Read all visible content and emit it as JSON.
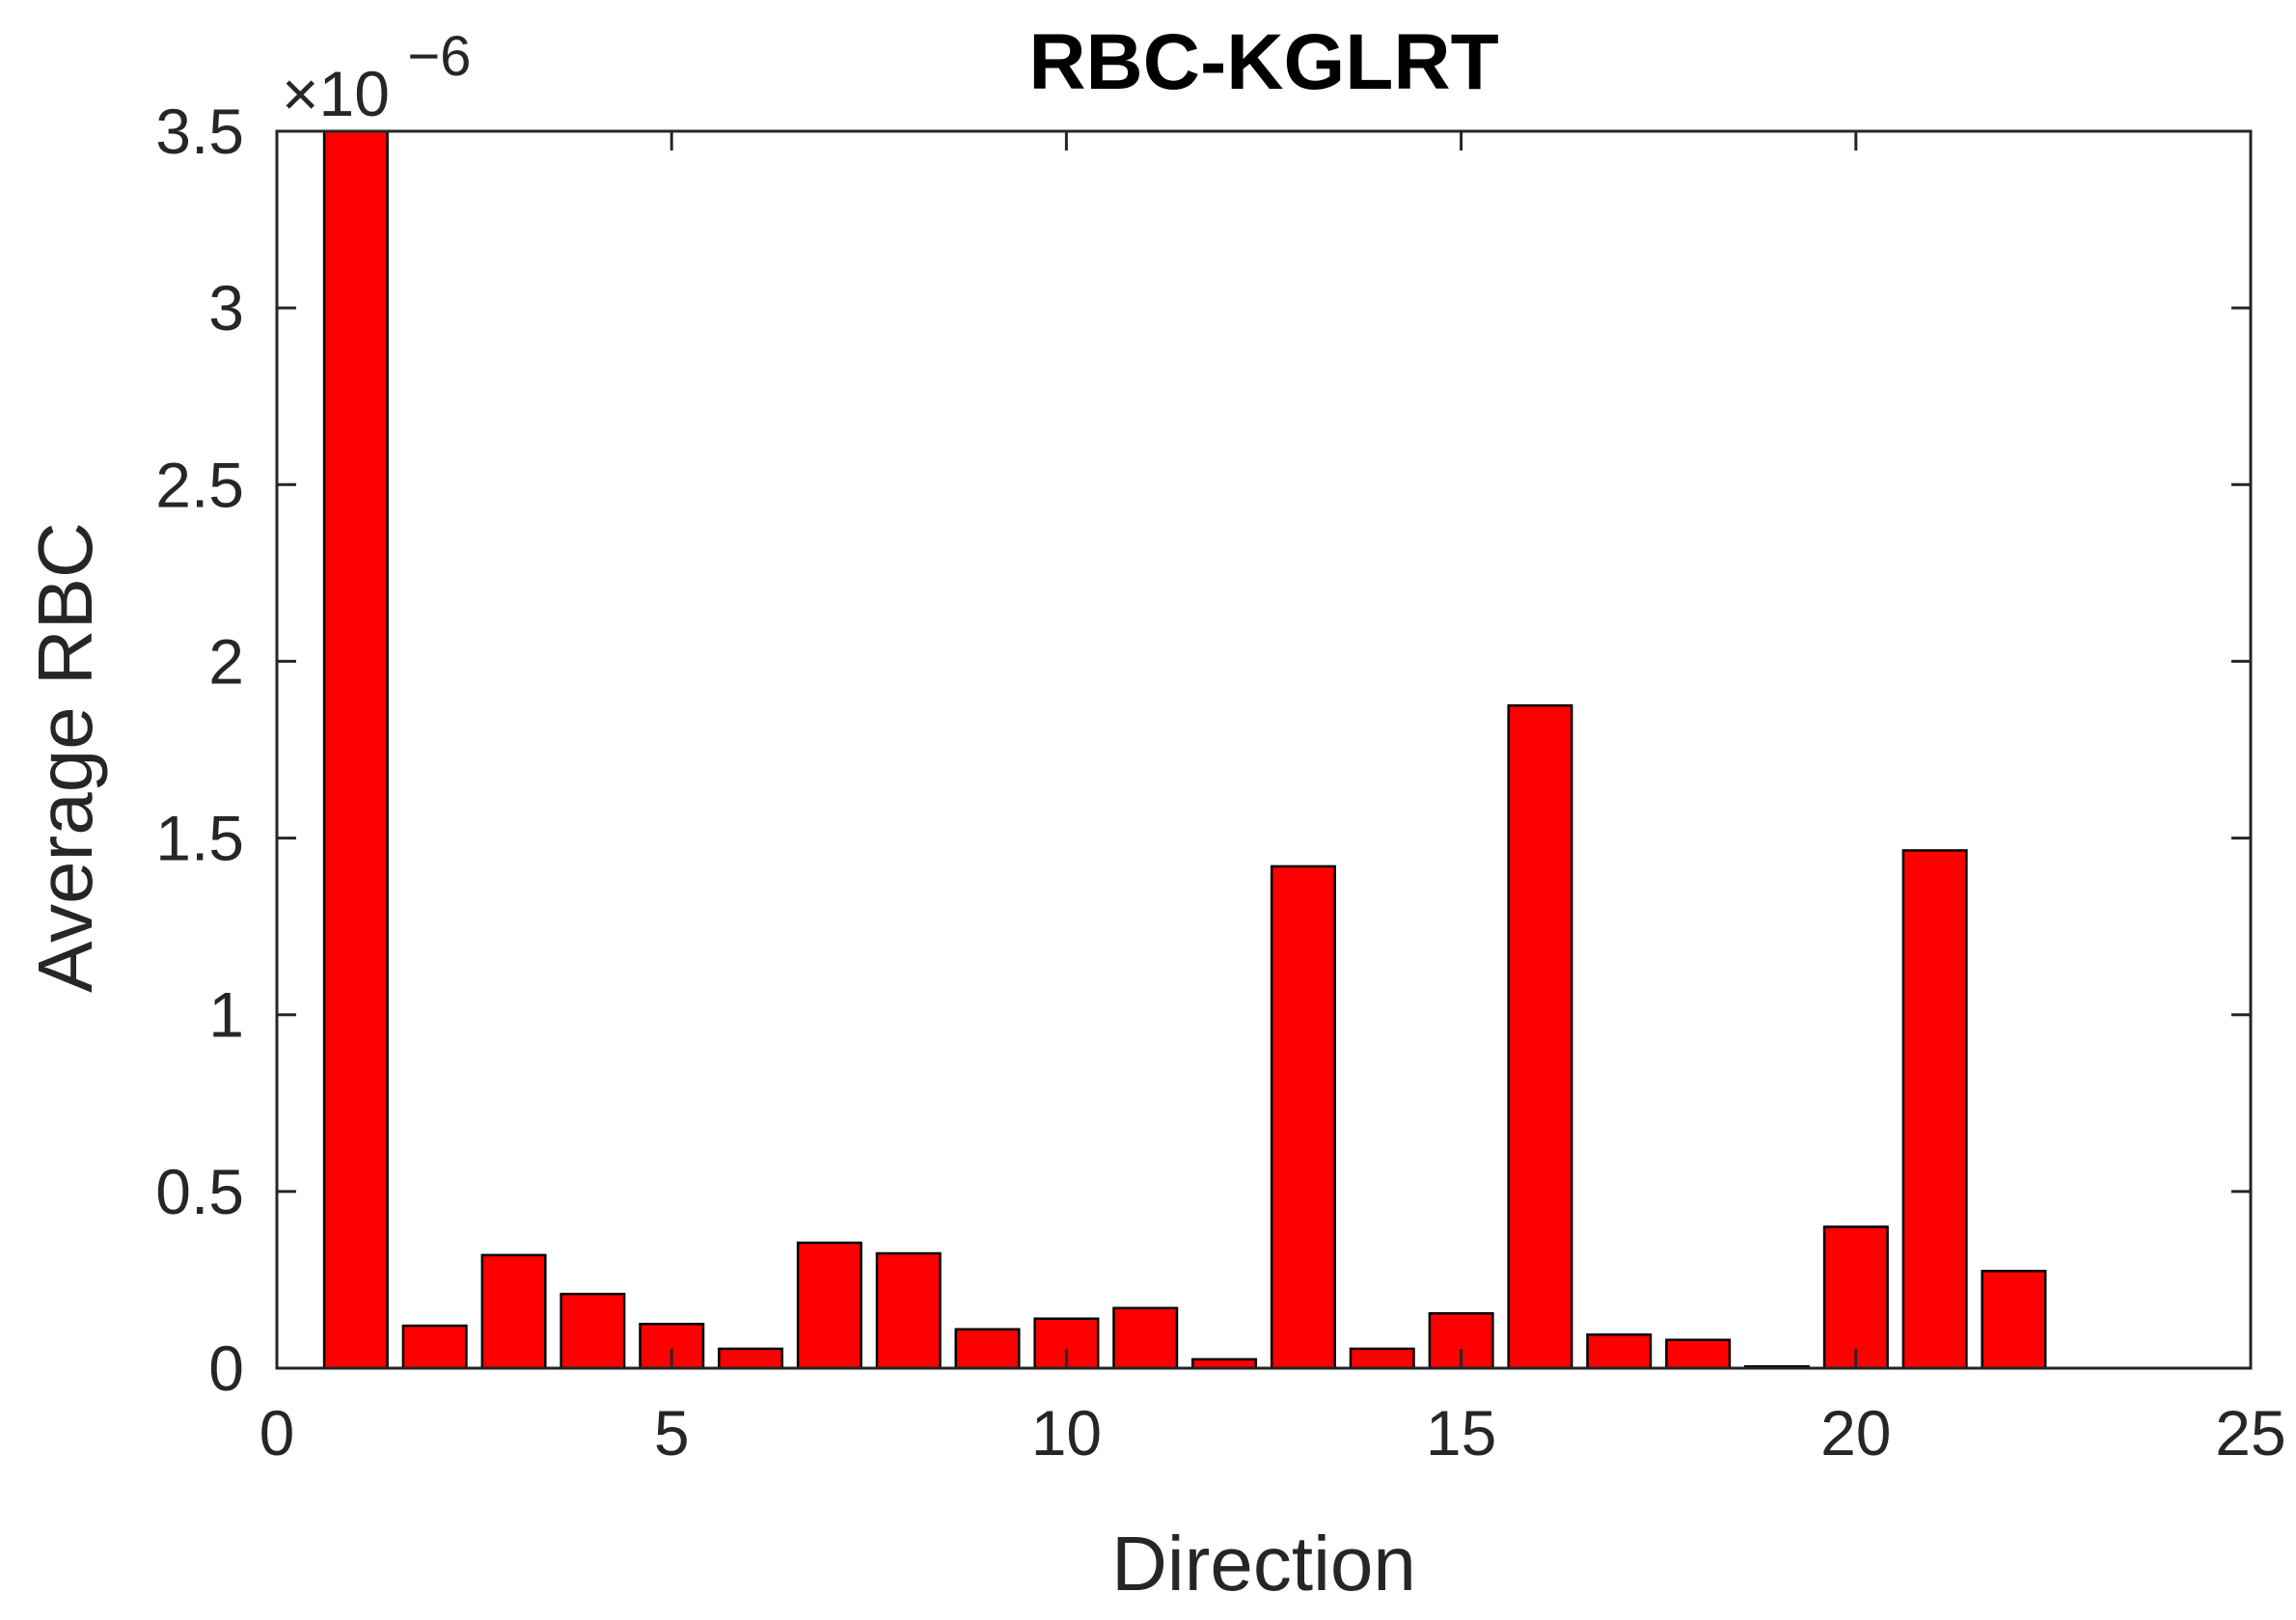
{
  "chart_data": {
    "type": "bar",
    "title": "RBC-KGLRT",
    "xlabel": "Direction",
    "ylabel": "Average RBC",
    "y_exponent_base": "×10",
    "y_exponent_power": "−6",
    "xlim": [
      0,
      25
    ],
    "ylim": [
      0,
      3.5
    ],
    "xticks": [
      0,
      5,
      10,
      15,
      20,
      25
    ],
    "yticks": [
      0,
      0.5,
      1,
      1.5,
      2,
      2.5,
      3,
      3.5
    ],
    "ytick_labels": [
      "0",
      "0.5",
      "1",
      "1.5",
      "2",
      "2.5",
      "3",
      "3.5"
    ],
    "grid": false,
    "bar_color": "#ff0000",
    "edge_color": "#000000",
    "x": [
      1,
      2,
      3,
      4,
      5,
      6,
      7,
      8,
      9,
      10,
      11,
      12,
      13,
      14,
      15,
      16,
      17,
      18,
      19,
      20,
      21,
      22
    ],
    "values": [
      3.5,
      0.12,
      0.32,
      0.21,
      0.125,
      0.055,
      0.355,
      0.325,
      0.11,
      0.14,
      0.17,
      0.025,
      1.42,
      0.055,
      0.155,
      1.875,
      0.095,
      0.08,
      0.005,
      0.4,
      1.465,
      0.275
    ]
  }
}
